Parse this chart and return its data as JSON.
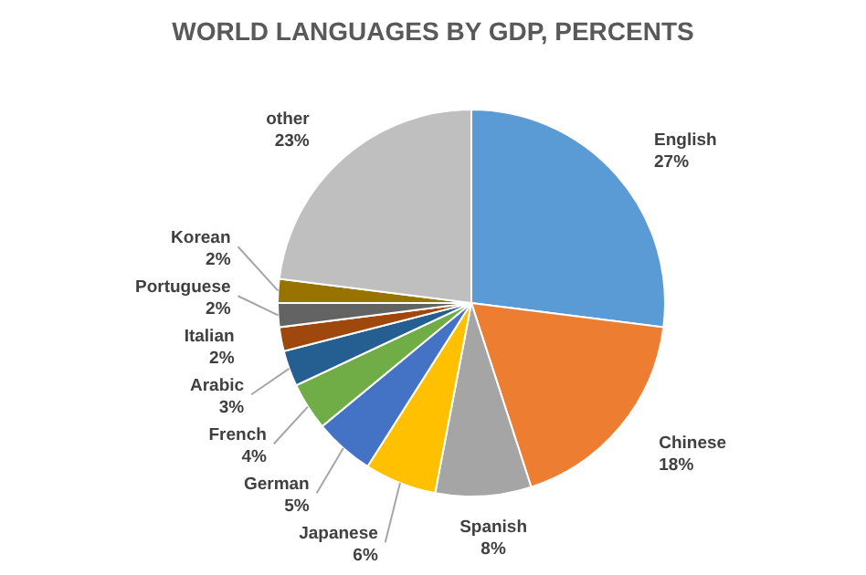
{
  "chart_data": {
    "type": "pie",
    "title": "WORLD LANGUAGES BY GDP, PERCENTS",
    "categories": [
      "English",
      "Chinese",
      "Spanish",
      "Japanese",
      "German",
      "French",
      "Arabic",
      "Italian",
      "Portuguese",
      "Korean",
      "other"
    ],
    "values": [
      27,
      18,
      8,
      6,
      5,
      4,
      3,
      2,
      2,
      2,
      23
    ],
    "value_labels": [
      "27%",
      "18%",
      "8%",
      "6%",
      "5%",
      "4%",
      "3%",
      "2%",
      "2%",
      "2%",
      "23%"
    ],
    "colors": [
      "#5b9bd5",
      "#ed7d31",
      "#a5a5a5",
      "#ffc000",
      "#4472c4",
      "#70ad47",
      "#255e91",
      "#9e480e",
      "#636363",
      "#997300",
      "#bfbfbf"
    ]
  }
}
